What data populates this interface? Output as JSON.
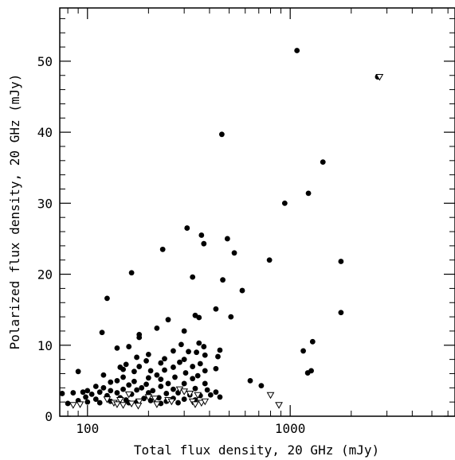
{
  "chart_data": {
    "type": "scatter",
    "title": "",
    "xlabel": "Total flux density, 20 GHz (mJy)",
    "ylabel": "Polarized flux density, 20 GHz (mJy)",
    "xscale": "log",
    "xlim": [
      73,
      6500
    ],
    "ylim": [
      0,
      57.5
    ],
    "grid": false,
    "legend": "none",
    "x_ticks": [
      {
        "value": 100,
        "label": "100"
      },
      {
        "value": 1000,
        "label": "1000"
      }
    ],
    "x_minor_ticks": [
      80,
      90,
      200,
      300,
      400,
      500,
      600,
      700,
      800,
      900,
      2000,
      3000,
      4000,
      5000,
      6000
    ],
    "y_ticks": [
      {
        "value": 0,
        "label": "0"
      },
      {
        "value": 10,
        "label": "10"
      },
      {
        "value": 20,
        "label": "20"
      },
      {
        "value": 30,
        "label": "30"
      },
      {
        "value": 40,
        "label": "40"
      },
      {
        "value": 50,
        "label": "50"
      }
    ],
    "y_minor_ticks": [
      2,
      4,
      6,
      8,
      12,
      14,
      16,
      18,
      22,
      24,
      26,
      28,
      32,
      34,
      36,
      38,
      42,
      44,
      46,
      48,
      52,
      54,
      56
    ],
    "series": [
      {
        "marker": "filled-circle",
        "color": "#000000",
        "points": [
          [
            1080,
            51.5
          ],
          [
            2700,
            47.8
          ],
          [
            460,
            39.7
          ],
          [
            1450,
            35.8
          ],
          [
            940,
            30.0
          ],
          [
            1230,
            31.4
          ],
          [
            310,
            26.5
          ],
          [
            365,
            25.5
          ],
          [
            490,
            25.0
          ],
          [
            375,
            24.3
          ],
          [
            235,
            23.5
          ],
          [
            530,
            23.0
          ],
          [
            790,
            22.0
          ],
          [
            1780,
            21.8
          ],
          [
            165,
            20.2
          ],
          [
            330,
            19.6
          ],
          [
            465,
            19.2
          ],
          [
            580,
            17.7
          ],
          [
            125,
            16.6
          ],
          [
            430,
            15.1
          ],
          [
            1780,
            14.6
          ],
          [
            340,
            14.2
          ],
          [
            510,
            14.0
          ],
          [
            355,
            13.9
          ],
          [
            250,
            13.6
          ],
          [
            220,
            12.4
          ],
          [
            300,
            12.0
          ],
          [
            118,
            11.8
          ],
          [
            180,
            11.5
          ],
          [
            180,
            11.1
          ],
          [
            1290,
            10.5
          ],
          [
            290,
            10.1
          ],
          [
            355,
            10.3
          ],
          [
            160,
            9.8
          ],
          [
            375,
            9.8
          ],
          [
            140,
            9.6
          ],
          [
            450,
            9.3
          ],
          [
            265,
            9.2
          ],
          [
            315,
            9.1
          ],
          [
            345,
            9.0
          ],
          [
            1160,
            9.2
          ],
          [
            200,
            8.7
          ],
          [
            380,
            8.6
          ],
          [
            440,
            8.4
          ],
          [
            175,
            8.3
          ],
          [
            300,
            8.0
          ],
          [
            240,
            8.1
          ],
          [
            195,
            7.8
          ],
          [
            285,
            7.6
          ],
          [
            360,
            7.4
          ],
          [
            230,
            7.5
          ],
          [
            155,
            7.3
          ],
          [
            180,
            7.0
          ],
          [
            330,
            7.0
          ],
          [
            265,
            6.9
          ],
          [
            145,
            6.9
          ],
          [
            150,
            6.6
          ],
          [
            430,
            6.7
          ],
          [
            205,
            6.4
          ],
          [
            240,
            6.5
          ],
          [
            380,
            6.4
          ],
          [
            1270,
            6.4
          ],
          [
            1220,
            6.1
          ],
          [
            90,
            6.3
          ],
          [
            170,
            6.3
          ],
          [
            305,
            6.1
          ],
          [
            120,
            5.8
          ],
          [
            220,
            5.8
          ],
          [
            350,
            5.7
          ],
          [
            150,
            5.5
          ],
          [
            270,
            5.5
          ],
          [
            200,
            5.4
          ],
          [
            330,
            5.3
          ],
          [
            230,
            5.2
          ],
          [
            635,
            5.0
          ],
          [
            140,
            5.0
          ],
          [
            170,
            4.9
          ],
          [
            130,
            4.8
          ],
          [
            250,
            4.6
          ],
          [
            300,
            4.6
          ],
          [
            195,
            4.5
          ],
          [
            380,
            4.6
          ],
          [
            160,
            4.4
          ],
          [
            720,
            4.3
          ],
          [
            110,
            4.2
          ],
          [
            230,
            4.2
          ],
          [
            120,
            4.0
          ],
          [
            185,
            4.0
          ],
          [
            340,
            3.9
          ],
          [
            265,
            3.8
          ],
          [
            150,
            3.8
          ],
          [
            100,
            3.6
          ],
          [
            130,
            3.6
          ],
          [
            175,
            3.7
          ],
          [
            210,
            3.6
          ],
          [
            390,
            3.7
          ],
          [
            115,
            3.4
          ],
          [
            95,
            3.4
          ],
          [
            140,
            3.3
          ],
          [
            280,
            3.3
          ],
          [
            430,
            3.4
          ],
          [
            200,
            3.3
          ],
          [
            245,
            3.2
          ],
          [
            75,
            3.2
          ],
          [
            85,
            3.3
          ],
          [
            105,
            3.1
          ],
          [
            165,
            3.1
          ],
          [
            320,
            3.0
          ],
          [
            405,
            3.0
          ],
          [
            360,
            2.9
          ],
          [
            125,
            2.9
          ],
          [
            450,
            2.7
          ],
          [
            98,
            2.7
          ],
          [
            145,
            2.6
          ],
          [
            190,
            2.5
          ],
          [
            225,
            2.6
          ],
          [
            265,
            2.5
          ],
          [
            300,
            2.4
          ],
          [
            110,
            2.4
          ],
          [
            340,
            2.3
          ],
          [
            155,
            2.3
          ],
          [
            90,
            2.2
          ],
          [
            205,
            2.2
          ],
          [
            245,
            2.1
          ],
          [
            130,
            2.1
          ],
          [
            100,
            2.0
          ],
          [
            175,
            2.0
          ],
          [
            280,
            1.9
          ],
          [
            115,
            1.9
          ],
          [
            230,
            1.8
          ],
          [
            80,
            1.8
          ],
          [
            160,
            1.9
          ]
        ]
      },
      {
        "marker": "open-triangle-down",
        "color": "#000000",
        "points": [
          [
            2760,
            47.8
          ],
          [
            800,
            3.0
          ],
          [
            880,
            1.6
          ],
          [
            285,
            3.8
          ],
          [
            300,
            3.5
          ],
          [
            320,
            3.2
          ],
          [
            350,
            3.0
          ],
          [
            160,
            3.1
          ],
          [
            200,
            2.7
          ],
          [
            215,
            2.5
          ],
          [
            125,
            2.4
          ],
          [
            145,
            2.3
          ],
          [
            180,
            2.1
          ],
          [
            250,
            2.3
          ],
          [
            260,
            2.1
          ],
          [
            330,
            2.1
          ],
          [
            365,
            1.9
          ],
          [
            380,
            2.1
          ],
          [
            135,
            1.9
          ],
          [
            140,
            1.7
          ],
          [
            150,
            1.6
          ],
          [
            165,
            1.8
          ],
          [
            178,
            1.5
          ],
          [
            92,
            1.7
          ],
          [
            85,
            1.6
          ],
          [
            340,
            1.7
          ],
          [
            220,
            1.7
          ]
        ]
      }
    ]
  }
}
